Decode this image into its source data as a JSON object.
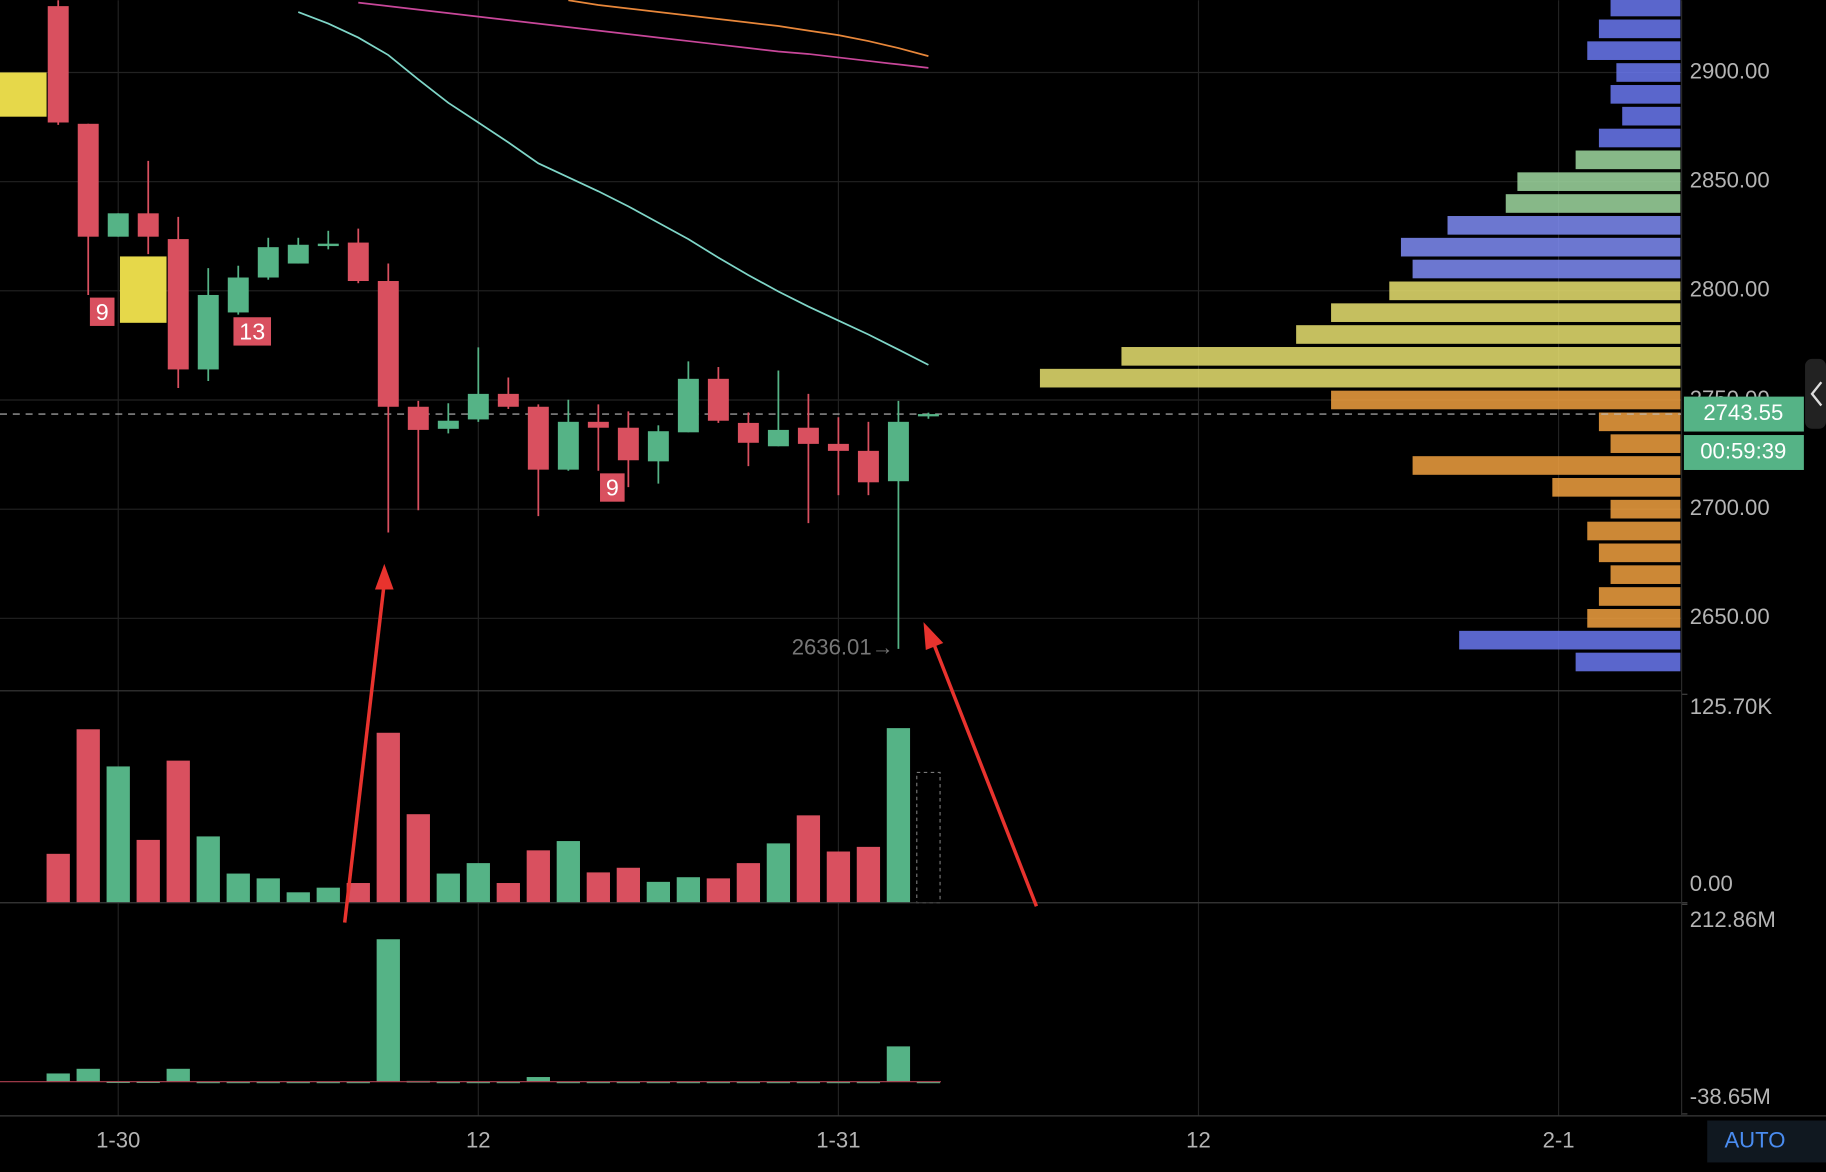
{
  "chart_data": {
    "type": "candlestick",
    "up_color": "#55b386",
    "down_color": "#d9505f",
    "grid": true,
    "open": [
      2930.4,
      2876.5,
      2824.8,
      2835.5,
      2823.7,
      2764.0,
      2790.1,
      2806.1,
      2812.5,
      2820.5,
      2822.1,
      2804.5,
      2746.9,
      2736.8,
      2741.1,
      2752.8,
      2746.9,
      2718.1,
      2740.0,
      2737.3,
      2721.9,
      2735.2,
      2759.7,
      2739.5,
      2728.8,
      2737.3,
      2729.9,
      2726.7,
      2712.8,
      2742.5
    ],
    "high": [
      2933.1,
      2876.5,
      2835.5,
      2859.5,
      2833.9,
      2810.4,
      2811.5,
      2824.3,
      2824.3,
      2827.5,
      2828.5,
      2812.5,
      2749.6,
      2748.5,
      2774.1,
      2760.3,
      2748.0,
      2750.1,
      2748.0,
      2744.8,
      2738.4,
      2767.7,
      2765.1,
      2744.3,
      2763.5,
      2752.8,
      2742.1,
      2740.0,
      2749.6,
      2744.2
    ],
    "low": [
      2876.0,
      2798.1,
      2824.8,
      2816.8,
      2755.5,
      2758.7,
      2789.1,
      2805.1,
      2812.5,
      2819.0,
      2803.5,
      2689.3,
      2699.5,
      2734.7,
      2740.0,
      2745.9,
      2696.8,
      2717.6,
      2717.6,
      2710.1,
      2711.7,
      2735.2,
      2739.5,
      2719.7,
      2728.8,
      2693.6,
      2706.4,
      2706.4,
      2636.01,
      2741.4
    ],
    "close": [
      2877.1,
      2824.8,
      2835.5,
      2824.8,
      2764.0,
      2798.1,
      2806.1,
      2820.0,
      2821.1,
      2821.6,
      2804.5,
      2746.9,
      2736.3,
      2740.5,
      2752.8,
      2746.9,
      2718.1,
      2740.0,
      2737.3,
      2722.4,
      2735.7,
      2759.7,
      2740.5,
      2730.4,
      2736.3,
      2729.9,
      2726.7,
      2712.3,
      2740.0,
      2743.55
    ],
    "xlim": [
      -1.94,
      54.1
    ],
    "xticks": [
      {
        "value": 2,
        "label": "1-30"
      },
      {
        "value": 14,
        "label": "12"
      },
      {
        "value": 26,
        "label": "1-31"
      },
      {
        "value": 38,
        "label": "12"
      },
      {
        "value": 50,
        "label": "2-1"
      }
    ],
    "ylim": [
      2616.8,
      2933.1
    ],
    "yticks": [
      {
        "value": 2900,
        "label": "2900.00"
      },
      {
        "value": 2850,
        "label": "2850.00"
      },
      {
        "value": 2800,
        "label": "2800.00"
      },
      {
        "value": 2750,
        "label": "2750.00"
      },
      {
        "value": 2700,
        "label": "2700.00"
      },
      {
        "value": 2650,
        "label": "2650.00"
      }
    ],
    "ma_lines": [
      {
        "color": "#7fd6c8",
        "values": [
          null,
          null,
          null,
          null,
          null,
          null,
          null,
          null,
          2927.7,
          2922.4,
          2916.0,
          2908.0,
          2896.8,
          2886.1,
          2877.1,
          2868.0,
          2858.4,
          2852.0,
          2845.6,
          2838.7,
          2831.2,
          2823.7,
          2815.2,
          2807.2,
          2799.7,
          2792.8,
          2786.4,
          2780.0,
          2773.1,
          2766.1
        ]
      },
      {
        "color": "#e8873a",
        "values": [
          null,
          null,
          null,
          null,
          null,
          null,
          null,
          null,
          null,
          null,
          null,
          null,
          null,
          null,
          null,
          null,
          null,
          2933.1,
          2930.9,
          2929.3,
          2927.7,
          2926.1,
          2924.5,
          2922.9,
          2921.3,
          2919.2,
          2917.1,
          2914.4,
          2911.2,
          2907.5
        ]
      },
      {
        "color": "#c8479a",
        "values": [
          null,
          null,
          null,
          null,
          null,
          null,
          null,
          null,
          null,
          null,
          2932.0,
          2930.4,
          2928.8,
          2927.2,
          2925.6,
          2924.0,
          2922.4,
          2920.8,
          2919.2,
          2917.6,
          2916.0,
          2914.4,
          2912.8,
          2911.2,
          2909.6,
          2908.5,
          2906.9,
          2905.3,
          2903.7,
          2902.1
        ]
      }
    ],
    "last_price": 2743.55,
    "countdown": "00:59:39",
    "low_label": {
      "value": 2636.01,
      "label": "2636.01→"
    },
    "markers": [
      {
        "index": 1,
        "label": "9"
      },
      {
        "index": 6,
        "label": "13"
      },
      {
        "index": 18,
        "label": "9"
      }
    ],
    "volume": {
      "values": [
        29.5,
        104.6,
        82.2,
        37.9,
        85.7,
        40.0,
        17.6,
        14.7,
        6.3,
        9.1,
        11.9,
        102.5,
        53.4,
        17.6,
        23.9,
        11.9,
        31.6,
        37.2,
        18.3,
        21.1,
        12.6,
        15.4,
        14.7,
        23.9,
        35.8,
        52.7,
        30.9,
        33.7,
        105.3,
        78.6
      ],
      "ylim": [
        0,
        127.8
      ],
      "yticks": [
        {
          "value": 125.7,
          "label": "125.70K"
        },
        {
          "value": 0,
          "label": "0.00"
        }
      ]
    },
    "flow": {
      "color": "#55b386",
      "values": [
        9.9,
        15.5,
        0.5,
        0.5,
        15.5,
        0.3,
        0.3,
        0.3,
        0.3,
        0.3,
        0.3,
        171,
        1,
        0.3,
        0.3,
        0.3,
        5.6,
        0.3,
        0.3,
        0.3,
        0.3,
        0.3,
        0.3,
        0.3,
        0.3,
        0.3,
        0.3,
        0.3,
        42.4,
        0.3
      ],
      "ylim": [
        -41,
        214.8
      ],
      "yticks": [
        {
          "value": 212.86,
          "label": "212.86M"
        },
        {
          "value": -38.65,
          "label": "-38.65M"
        }
      ]
    },
    "profile": {
      "prices": [
        2930,
        2920,
        2910,
        2900,
        2890,
        2880,
        2870,
        2860,
        2850,
        2840,
        2830,
        2820,
        2810,
        2800,
        2790,
        2780,
        2770,
        2760,
        2750,
        2740,
        2730,
        2720,
        2710,
        2700,
        2690,
        2680,
        2670,
        2660,
        2650,
        2640,
        2630
      ],
      "values": [
        60,
        70,
        80,
        55,
        60,
        50,
        70,
        90,
        140,
        150,
        200,
        240,
        230,
        250,
        300,
        330,
        480,
        550,
        300,
        70,
        60,
        230,
        110,
        60,
        80,
        70,
        60,
        70,
        80,
        190,
        90
      ],
      "colors": [
        "#6a78f0",
        "#6a78f0",
        "#6a78f0",
        "#6a78f0",
        "#6a78f0",
        "#6a78f0",
        "#6a78f0",
        "#9fd8a0",
        "#9fd8a0",
        "#9fd8a0",
        "#7f8cf5",
        "#7f8cf5",
        "#7f8cf5",
        "#e8e070",
        "#e8e070",
        "#e8e070",
        "#e8e070",
        "#e8e070",
        "#f0a040",
        "#f0a040",
        "#f0a040",
        "#f0a040",
        "#f0a040",
        "#f0a040",
        "#f0a040",
        "#f0a040",
        "#f0a040",
        "#f0a040",
        "#f0a040",
        "#6a78f0",
        "#6a78f0"
      ]
    },
    "auto": "AUTO"
  }
}
